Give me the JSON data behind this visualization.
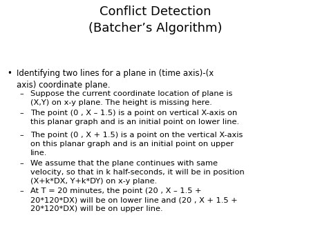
{
  "title": "Conflict Detection\n(Batcher’s Algorithm)",
  "title_fontsize": 13,
  "body_fontsize": 8.5,
  "sub_fontsize": 8.2,
  "background_color": "#ffffff",
  "text_color": "#000000",
  "bullet_text": "Identifying two lines for a plane in (time axis)-(x\naxis) coordinate plane.",
  "sub_bullets": [
    "Suppose the current coordinate location of plane is\n(X,Y) on x-y plane. The height is missing here.",
    "The point (0 , X – 1.5) is a point on vertical X-axis on\nthis planar graph and is an initial point on lower line.",
    "The point (0 , X + 1.5) is a point on the vertical X-axis\non this planar graph and is an initial point on upper\nline.",
    "We assume that the plane continues with same\nvelocity, so that in k half-seconds, it will be in position\n(X+k*DX, Y+k*DY) on x-y plane.",
    "At T = 20 minutes, the point (20 , X – 1.5 +\n20*120*DX) will be on lower line and (20 , X + 1.5 +\n20*120*DX) will be on upper line."
  ]
}
